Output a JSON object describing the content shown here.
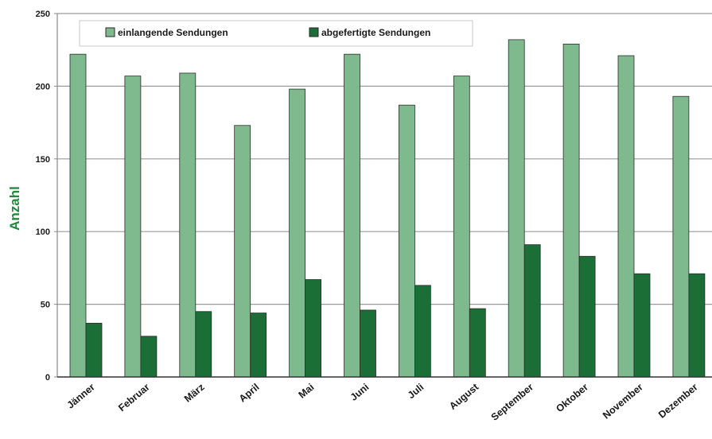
{
  "chart_data": {
    "type": "bar",
    "ylabel": "Anzahl",
    "xlabel": "",
    "ylim": [
      0,
      250
    ],
    "yticks": [
      0,
      50,
      100,
      150,
      200,
      250
    ],
    "grid": "horizontal",
    "legend_position": "top",
    "categories": [
      "Jänner",
      "Februar",
      "März",
      "April",
      "Mai",
      "Juni",
      "Juli",
      "August",
      "September",
      "Oktober",
      "November",
      "Dezember"
    ],
    "series": [
      {
        "name": "einlangende Sendungen",
        "color": "#7fba8f",
        "values": [
          222,
          207,
          209,
          173,
          198,
          222,
          187,
          207,
          232,
          229,
          221,
          193
        ]
      },
      {
        "name": "abgefertigte Sendungen",
        "color": "#1a6e36",
        "values": [
          37,
          28,
          45,
          44,
          67,
          46,
          63,
          47,
          91,
          83,
          71,
          71
        ]
      }
    ]
  }
}
